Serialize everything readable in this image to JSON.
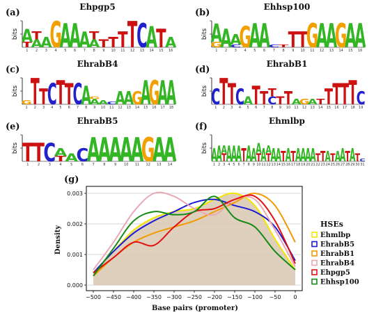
{
  "colors": {
    "A": "#33b526",
    "C": "#2222cc",
    "G": "#f2a000",
    "T": "#cc1111"
  },
  "logos": [
    {
      "label": "(a)",
      "title": "Ehpgp5",
      "ylabel": "bits",
      "sequence": [
        [
          [
            "T",
            0.2
          ],
          [
            "A",
            0.5
          ]
        ],
        [
          [
            "A",
            0.3
          ],
          [
            "T",
            0.3
          ]
        ],
        [
          [
            "A",
            0.4
          ]
        ],
        [
          [
            "G",
            1.0
          ]
        ],
        [
          [
            "A",
            0.9
          ]
        ],
        [
          [
            "A",
            0.9
          ]
        ],
        [
          [
            "A",
            0.6
          ]
        ],
        [
          [
            "A",
            0.3
          ],
          [
            "T",
            0.3
          ]
        ],
        [
          [
            "T",
            0.3
          ]
        ],
        [
          [
            "T",
            0.4
          ]
        ],
        [
          [
            "T",
            0.6
          ]
        ],
        [
          [
            "T",
            1.0
          ]
        ],
        [
          [
            "C",
            0.9
          ]
        ],
        [
          [
            "A",
            0.8
          ]
        ],
        [
          [
            "T",
            0.7
          ]
        ],
        [
          [
            "A",
            0.4
          ]
        ]
      ]
    },
    {
      "label": "(b)",
      "title": "Ehhsp100",
      "ylabel": "bits",
      "sequence": [
        [
          [
            "G",
            0.2
          ],
          [
            "A",
            0.7
          ]
        ],
        [
          [
            "A",
            0.7
          ]
        ],
        [
          [
            "C",
            0.1
          ],
          [
            "A",
            0.4
          ]
        ],
        [
          [
            "G",
            0.8
          ]
        ],
        [
          [
            "A",
            0.9
          ]
        ],
        [
          [
            "A",
            0.9
          ]
        ],
        [
          [
            "C",
            0.1
          ]
        ],
        [
          [
            "T",
            0.1
          ]
        ],
        [
          [
            "T",
            0.6
          ]
        ],
        [
          [
            "T",
            0.6
          ]
        ],
        [
          [
            "G",
            0.9
          ]
        ],
        [
          [
            "A",
            0.9
          ]
        ],
        [
          [
            "A",
            0.9
          ]
        ],
        [
          [
            "G",
            0.9
          ]
        ],
        [
          [
            "A",
            0.9
          ]
        ],
        [
          [
            "A",
            0.9
          ]
        ]
      ]
    },
    {
      "label": "(c)",
      "title": "EhrabB4",
      "ylabel": "bits",
      "sequence": [
        [
          [
            "G",
            0.15
          ]
        ],
        [
          [
            "T",
            1.0
          ]
        ],
        [
          [
            "T",
            0.6
          ]
        ],
        [
          [
            "C",
            0.8
          ]
        ],
        [
          [
            "T",
            0.9
          ]
        ],
        [
          [
            "T",
            0.8
          ]
        ],
        [
          [
            "C",
            0.8
          ]
        ],
        [
          [
            "A",
            0.7
          ]
        ],
        [
          [
            "A",
            0.2
          ],
          [
            "G",
            0.1
          ]
        ],
        [
          [
            "A",
            0.15
          ]
        ],
        [
          [
            "C",
            0.1
          ]
        ],
        [
          [
            "A",
            0.5
          ]
        ],
        [
          [
            "A",
            0.5
          ]
        ],
        [
          [
            "G",
            0.5
          ]
        ],
        [
          [
            "A",
            0.9
          ]
        ],
        [
          [
            "G",
            0.9
          ]
        ],
        [
          [
            "A",
            0.9
          ]
        ],
        [
          [
            "A",
            0.9
          ]
        ]
      ]
    },
    {
      "label": "(d)",
      "title": "EhrabB1",
      "ylabel": "bits",
      "sequence": [
        [
          [
            "C",
            0.6
          ]
        ],
        [
          [
            "T",
            1.0
          ]
        ],
        [
          [
            "T",
            0.8
          ]
        ],
        [
          [
            "C",
            0.6
          ]
        ],
        [
          [
            "A",
            0.3
          ]
        ],
        [
          [
            "T",
            0.7
          ]
        ],
        [
          [
            "T",
            0.5
          ]
        ],
        [
          [
            "C",
            0.3
          ],
          [
            "T",
            0.3
          ]
        ],
        [
          [
            "T",
            0.3
          ]
        ],
        [
          [
            "T",
            0.5
          ]
        ],
        [
          [
            "A",
            0.2
          ]
        ],
        [
          [
            "G",
            0.2
          ]
        ],
        [
          [
            "A",
            0.2
          ]
        ],
        [
          [
            "T",
            0.2
          ]
        ],
        [
          [
            "T",
            0.6
          ]
        ],
        [
          [
            "T",
            0.8
          ]
        ],
        [
          [
            "T",
            0.8
          ]
        ],
        [
          [
            "T",
            0.9
          ]
        ],
        [
          [
            "C",
            0.5
          ]
        ]
      ]
    },
    {
      "label": "(e)",
      "title": "EhrabB5",
      "ylabel": "bits",
      "sequence": [
        [
          [
            "T",
            0.7
          ]
        ],
        [
          [
            "T",
            0.7
          ]
        ],
        [
          [
            "C",
            0.7
          ]
        ],
        [
          [
            "T",
            0.2
          ],
          [
            "A",
            0.3
          ]
        ],
        [
          [
            "A",
            0.3
          ]
        ],
        [
          [
            "C",
            0.5
          ]
        ],
        [
          [
            "A",
            0.9
          ]
        ],
        [
          [
            "A",
            0.9
          ]
        ],
        [
          [
            "A",
            0.9
          ]
        ],
        [
          [
            "A",
            0.9
          ]
        ],
        [
          [
            "A",
            0.9
          ]
        ],
        [
          [
            "G",
            0.9
          ]
        ],
        [
          [
            "A",
            0.9
          ]
        ],
        [
          [
            "A",
            0.9
          ]
        ]
      ]
    },
    {
      "label": "(f)",
      "title": "Ehmlbp",
      "ylabel": "bits",
      "sequence": [
        [
          [
            "A",
            0.5
          ]
        ],
        [
          [
            "A",
            0.6
          ]
        ],
        [
          [
            "T",
            0.3
          ],
          [
            "A",
            0.3
          ]
        ],
        [
          [
            "A",
            0.6
          ]
        ],
        [
          [
            "A",
            0.6
          ]
        ],
        [
          [
            "A",
            0.6
          ]
        ],
        [
          [
            "T",
            0.5
          ]
        ],
        [
          [
            "A",
            0.6
          ]
        ],
        [
          [
            "A",
            0.5
          ]
        ],
        [
          [
            "T",
            0.3
          ],
          [
            "A",
            0.4
          ]
        ],
        [
          [
            "A",
            0.5
          ]
        ],
        [
          [
            "T",
            0.3
          ],
          [
            "A",
            0.3
          ]
        ],
        [
          [
            "A",
            0.5
          ]
        ],
        [
          [
            "A",
            0.5
          ]
        ],
        [
          [
            "T",
            0.4
          ]
        ],
        [
          [
            "A",
            0.5
          ]
        ],
        [
          [
            "T",
            0.4
          ]
        ],
        [
          [
            "A",
            0.5
          ]
        ],
        [
          [
            "A",
            0.5
          ]
        ],
        [
          [
            "A",
            0.5
          ]
        ],
        [
          [
            "A",
            0.5
          ]
        ],
        [
          [
            "T",
            0.3
          ]
        ],
        [
          [
            "T",
            0.4
          ]
        ],
        [
          [
            "A",
            0.4
          ]
        ],
        [
          [
            "T",
            0.3
          ]
        ],
        [
          [
            "A",
            0.4
          ]
        ],
        [
          [
            "A",
            0.5
          ]
        ],
        [
          [
            "T",
            0.4
          ]
        ],
        [
          [
            "A",
            0.5
          ]
        ],
        [
          [
            "T",
            0.3
          ]
        ],
        [
          [
            "C",
            0.1
          ]
        ]
      ]
    }
  ],
  "density_panel_label": "(g)",
  "chart_data": {
    "type": "line",
    "xlabel": "Base pairs (promoter)",
    "ylabel": "Density",
    "xlim": [
      -500,
      0
    ],
    "ylim": [
      0,
      0.003
    ],
    "xticks": [
      -500,
      -450,
      -400,
      -350,
      -300,
      -250,
      -200,
      -150,
      -100,
      -50,
      0
    ],
    "yticks": [
      0.0,
      0.001,
      0.002,
      0.003
    ],
    "ytick_labels": [
      "0.000",
      "0.001",
      "0.002",
      "0.003"
    ],
    "grid": true,
    "legend_title": "HSEs",
    "legend_position": "right",
    "fill": {
      "name": "Ehmlbp",
      "color": "#d8c8b0",
      "x": [
        -500,
        -450,
        -400,
        -350,
        -300,
        -250,
        -200,
        -150,
        -100,
        -50,
        0
      ],
      "values": [
        0.00035,
        0.0011,
        0.0018,
        0.0022,
        0.0024,
        0.0025,
        0.0028,
        0.003,
        0.0026,
        0.0015,
        0.0005
      ]
    },
    "series": [
      {
        "name": "Ehmlbp",
        "color": "#f5e600",
        "x": [
          -500,
          -450,
          -400,
          -350,
          -300,
          -250,
          -200,
          -150,
          -100,
          -50,
          0
        ],
        "values": [
          0.0004,
          0.0011,
          0.0018,
          0.0022,
          0.0024,
          0.0025,
          0.0028,
          0.003,
          0.0026,
          0.0015,
          0.0005
        ]
      },
      {
        "name": "EhrabB5",
        "color": "#1a1ad6",
        "x": [
          -500,
          -450,
          -400,
          -350,
          -300,
          -250,
          -200,
          -150,
          -100,
          -50,
          0
        ],
        "values": [
          0.0004,
          0.0011,
          0.0017,
          0.0021,
          0.0024,
          0.0027,
          0.0028,
          0.0026,
          0.0024,
          0.0019,
          0.0008
        ]
      },
      {
        "name": "EhrabB1",
        "color": "#f29a00",
        "x": [
          -500,
          -450,
          -400,
          -350,
          -300,
          -250,
          -200,
          -150,
          -100,
          -50,
          0
        ],
        "values": [
          0.0003,
          0.0009,
          0.0014,
          0.0017,
          0.0019,
          0.0021,
          0.0024,
          0.0027,
          0.003,
          0.0026,
          0.0014
        ]
      },
      {
        "name": "EhrabB4",
        "color": "#e8a8b4",
        "x": [
          -500,
          -450,
          -400,
          -350,
          -300,
          -250,
          -200,
          -150,
          -100,
          -50,
          0
        ],
        "values": [
          0.0005,
          0.0014,
          0.0024,
          0.003,
          0.0029,
          0.0025,
          0.0023,
          0.0028,
          0.0028,
          0.0018,
          0.0006
        ]
      },
      {
        "name": "Ehpgp5",
        "color": "#e01010",
        "x": [
          -500,
          -450,
          -400,
          -350,
          -300,
          -250,
          -200,
          -150,
          -100,
          -50,
          0
        ],
        "values": [
          0.0004,
          0.0009,
          0.0014,
          0.0013,
          0.0019,
          0.0024,
          0.0025,
          0.0028,
          0.0029,
          0.0021,
          0.0007
        ]
      },
      {
        "name": "Ehhsp100",
        "color": "#138a13",
        "x": [
          -500,
          -450,
          -400,
          -350,
          -300,
          -250,
          -200,
          -150,
          -100,
          -50,
          0
        ],
        "values": [
          0.0003,
          0.0012,
          0.0021,
          0.0024,
          0.0023,
          0.0024,
          0.0029,
          0.0022,
          0.0019,
          0.0011,
          0.0005
        ]
      }
    ]
  }
}
